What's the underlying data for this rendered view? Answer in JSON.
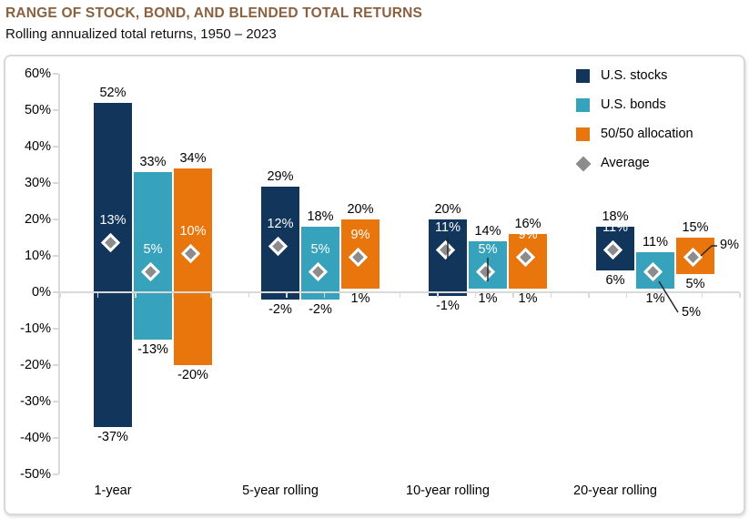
{
  "title": "RANGE OF STOCK, BOND, AND BLENDED TOTAL RETURNS",
  "subtitle": "Rolling annualized total returns, 1950 – 2023",
  "colors": {
    "title": "#8A6140",
    "stocks": "#12355B",
    "bonds": "#36A2BC",
    "blend": "#E8760C",
    "average_marker": "#8C8C8C",
    "axis": "#D9D9D9"
  },
  "legend": [
    {
      "label": "U.S. stocks",
      "swatch": "square",
      "color_key": "stocks"
    },
    {
      "label": "U.S. bonds",
      "swatch": "square",
      "color_key": "bonds"
    },
    {
      "label": "50/50 allocation",
      "swatch": "square",
      "color_key": "blend"
    },
    {
      "label": "Average",
      "swatch": "diamond",
      "color_key": "average_marker"
    }
  ],
  "chart_data": {
    "type": "bar",
    "subtype": "floating-range-bars-with-average-diamond-markers",
    "title": "RANGE OF STOCK, BOND, AND BLENDED TOTAL RETURNS",
    "subtitle": "Rolling annualized total returns, 1950 – 2023",
    "categories": [
      "1-year",
      "5-year rolling",
      "10-year rolling",
      "20-year rolling"
    ],
    "y_axis": {
      "unit": "%",
      "max": 60,
      "min": -50,
      "step": 10,
      "tick_labels": [
        "60%",
        "50%",
        "40%",
        "30%",
        "20%",
        "10%",
        "0%",
        "-10%",
        "-20%",
        "-30%",
        "-40%",
        "-50%"
      ],
      "gridlines": false
    },
    "legend_position": "top-right-inside",
    "marker_series": {
      "name": "Average",
      "shape": "diamond",
      "color": "#8C8C8C"
    },
    "series": [
      {
        "name": "U.S. stocks",
        "color": "#12355B",
        "points": [
          {
            "category": "1-year",
            "max": 52,
            "min": -37,
            "avg": 13,
            "avg_label_style": "inside"
          },
          {
            "category": "5-year rolling",
            "max": 29,
            "min": -2,
            "avg": 12,
            "avg_label_style": "inside"
          },
          {
            "category": "10-year rolling",
            "max": 20,
            "min": -1,
            "avg": 11,
            "avg_label_style": "inside-leader"
          },
          {
            "category": "20-year rolling",
            "max": 18,
            "min": 6,
            "avg": 11,
            "avg_label_style": "inside"
          }
        ]
      },
      {
        "name": "U.S. bonds",
        "color": "#36A2BC",
        "points": [
          {
            "category": "1-year",
            "max": 33,
            "min": -13,
            "avg": 5,
            "avg_label_style": "inside"
          },
          {
            "category": "5-year rolling",
            "max": 18,
            "min": -2,
            "avg": 5,
            "avg_label_style": "inside"
          },
          {
            "category": "10-year rolling",
            "max": 14,
            "min": 1,
            "avg": 5,
            "avg_label_style": "inside-leader"
          },
          {
            "category": "20-year rolling",
            "max": 11,
            "min": 1,
            "avg": 5,
            "avg_label_style": "callout-down"
          }
        ]
      },
      {
        "name": "50/50 allocation",
        "color": "#E8760C",
        "points": [
          {
            "category": "1-year",
            "max": 34,
            "min": -20,
            "avg": 10,
            "avg_label_style": "inside"
          },
          {
            "category": "5-year rolling",
            "max": 20,
            "min": 1,
            "avg": 9,
            "avg_label_style": "inside"
          },
          {
            "category": "10-year rolling",
            "max": 16,
            "min": 1,
            "avg": 9,
            "avg_label_style": "inside"
          },
          {
            "category": "20-year rolling",
            "max": 15,
            "min": 5,
            "avg": 9,
            "avg_label_style": "callout-up"
          }
        ]
      }
    ]
  }
}
